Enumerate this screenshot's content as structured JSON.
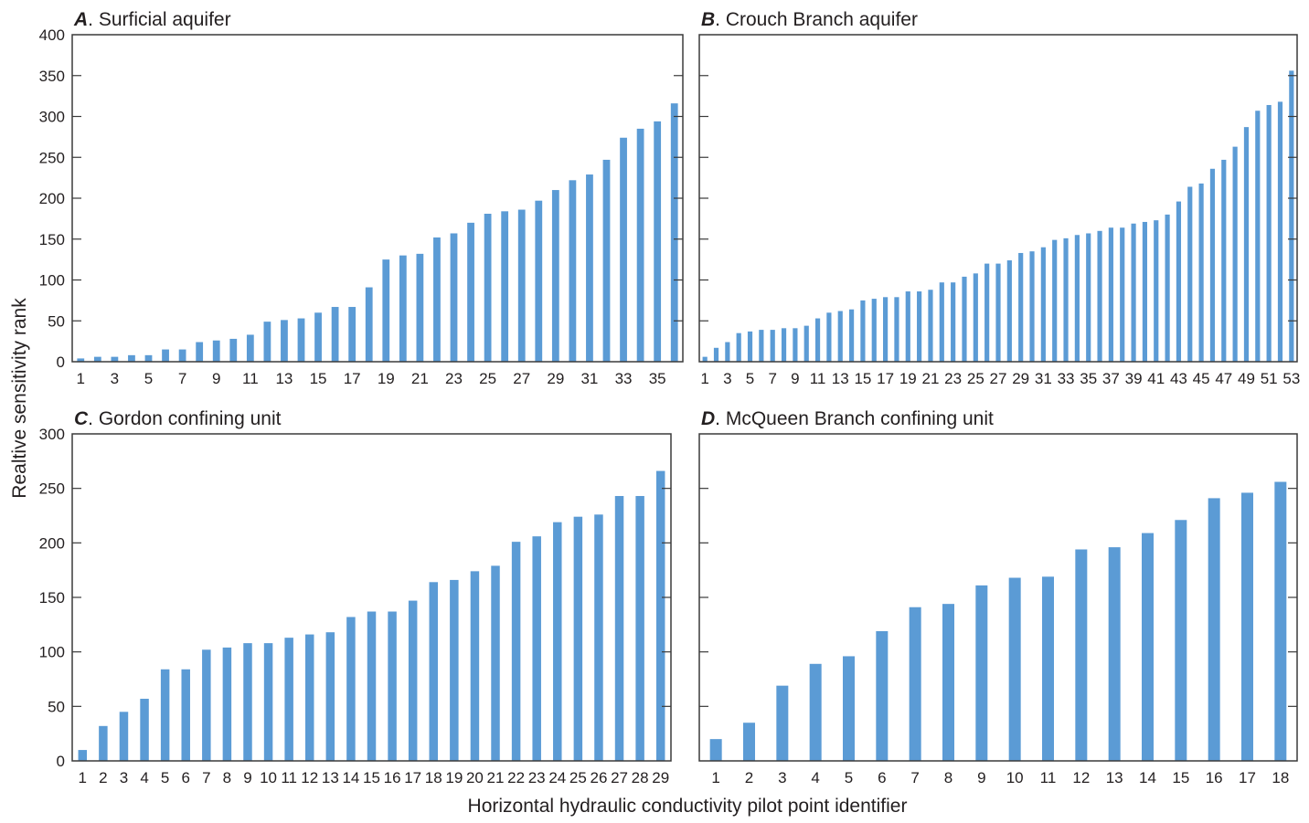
{
  "figure": {
    "ylabel": "Realtive sensitivity rank",
    "xlabel": "Horizontal hydraulic conductivity pilot point identifier",
    "bar_color": "#5b9bd5"
  },
  "chart_data": [
    {
      "type": "bar",
      "panel_letter": "A",
      "title": "Surficial aquifer",
      "ylim": [
        0,
        400
      ],
      "yticks": [
        0,
        50,
        100,
        150,
        200,
        250,
        300,
        350,
        400
      ],
      "xtick_labels_shown": [
        1,
        3,
        5,
        7,
        9,
        11,
        13,
        15,
        17,
        19,
        21,
        23,
        25,
        27,
        29,
        31,
        33,
        35
      ],
      "categories": [
        1,
        2,
        3,
        4,
        5,
        6,
        7,
        8,
        9,
        10,
        11,
        12,
        13,
        14,
        15,
        16,
        17,
        18,
        19,
        20,
        21,
        22,
        23,
        24,
        25,
        26,
        27,
        28,
        29,
        30,
        31,
        32,
        33,
        34,
        35,
        36
      ],
      "values": [
        4,
        6,
        6,
        8,
        8,
        15,
        15,
        24,
        26,
        28,
        33,
        49,
        51,
        53,
        60,
        67,
        67,
        91,
        125,
        130,
        132,
        152,
        157,
        170,
        181,
        184,
        186,
        197,
        210,
        222,
        229,
        247,
        274,
        285,
        294,
        316
      ]
    },
    {
      "type": "bar",
      "panel_letter": "B",
      "title": "Crouch Branch aquifer",
      "ylim": [
        0,
        400
      ],
      "yticks": [
        0,
        50,
        100,
        150,
        200,
        250,
        300,
        350,
        400
      ],
      "xtick_labels_shown": [
        1,
        3,
        5,
        7,
        9,
        11,
        13,
        15,
        17,
        19,
        21,
        23,
        25,
        27,
        29,
        31,
        33,
        35,
        37,
        39,
        41,
        43,
        45,
        47,
        49,
        51,
        53
      ],
      "categories": [
        1,
        2,
        3,
        4,
        5,
        6,
        7,
        8,
        9,
        10,
        11,
        12,
        13,
        14,
        15,
        16,
        17,
        18,
        19,
        20,
        21,
        22,
        23,
        24,
        25,
        26,
        27,
        28,
        29,
        30,
        31,
        32,
        33,
        34,
        35,
        36,
        37,
        38,
        39,
        40,
        41,
        42,
        43,
        44,
        45,
        46,
        47,
        48,
        49,
        50,
        51,
        52,
        53
      ],
      "values": [
        6,
        17,
        24,
        35,
        37,
        39,
        39,
        41,
        41,
        44,
        53,
        60,
        62,
        64,
        75,
        77,
        79,
        79,
        86,
        86,
        88,
        97,
        97,
        104,
        108,
        120,
        120,
        124,
        133,
        135,
        140,
        149,
        151,
        155,
        157,
        160,
        164,
        164,
        169,
        171,
        173,
        180,
        196,
        214,
        218,
        236,
        247,
        263,
        287,
        307,
        314,
        318,
        356
      ]
    },
    {
      "type": "bar",
      "panel_letter": "C",
      "title": "Gordon confining unit",
      "ylim": [
        0,
        300
      ],
      "yticks": [
        0,
        50,
        100,
        150,
        200,
        250,
        300
      ],
      "xtick_labels_shown": [
        1,
        2,
        3,
        4,
        5,
        6,
        7,
        8,
        9,
        10,
        11,
        12,
        13,
        14,
        15,
        16,
        17,
        18,
        19,
        20,
        21,
        22,
        23,
        24,
        25,
        26,
        27,
        28,
        29
      ],
      "categories": [
        1,
        2,
        3,
        4,
        5,
        6,
        7,
        8,
        9,
        10,
        11,
        12,
        13,
        14,
        15,
        16,
        17,
        18,
        19,
        20,
        21,
        22,
        23,
        24,
        25,
        26,
        27,
        28,
        29
      ],
      "values": [
        10,
        32,
        45,
        57,
        84,
        84,
        102,
        104,
        108,
        108,
        113,
        116,
        118,
        132,
        137,
        137,
        147,
        164,
        166,
        174,
        179,
        201,
        206,
        219,
        224,
        226,
        243,
        243,
        266
      ]
    },
    {
      "type": "bar",
      "panel_letter": "D",
      "title": "McQueen Branch confining unit",
      "ylim": [
        0,
        300
      ],
      "yticks": [
        0,
        50,
        100,
        150,
        200,
        250,
        300
      ],
      "xtick_labels_shown": [
        1,
        2,
        3,
        4,
        5,
        6,
        7,
        8,
        9,
        10,
        11,
        12,
        13,
        14,
        15,
        16,
        17,
        18
      ],
      "categories": [
        1,
        2,
        3,
        4,
        5,
        6,
        7,
        8,
        9,
        10,
        11,
        12,
        13,
        14,
        15,
        16,
        17,
        18
      ],
      "values": [
        20,
        35,
        69,
        89,
        96,
        119,
        141,
        144,
        161,
        168,
        169,
        194,
        196,
        209,
        221,
        241,
        246,
        256
      ]
    }
  ]
}
